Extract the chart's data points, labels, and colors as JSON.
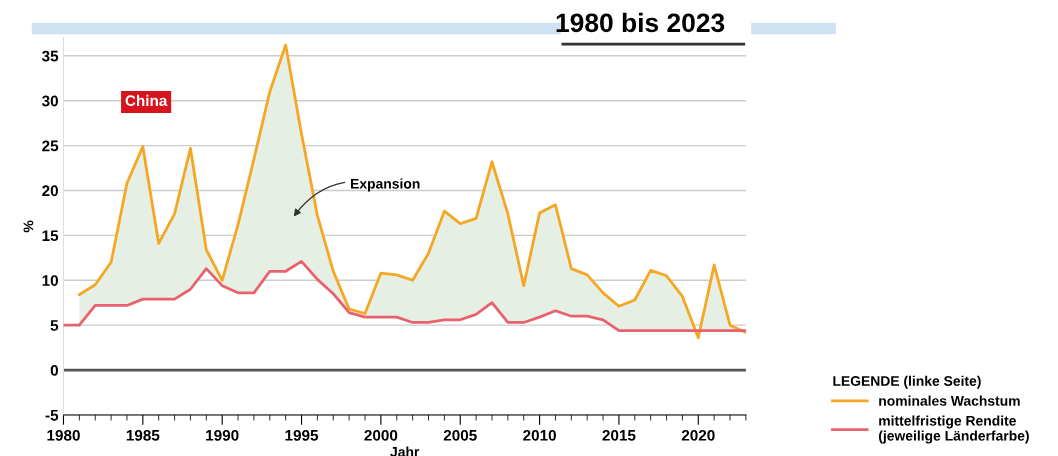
{
  "chart_data": {
    "type": "line",
    "title": "1980 bis 2023",
    "xlabel": "Jahr",
    "ylabel": "%",
    "legend_title": "LEGENDE (linke Seite)",
    "x": [
      1980,
      1981,
      1982,
      1983,
      1984,
      1985,
      1986,
      1987,
      1988,
      1989,
      1990,
      1991,
      1992,
      1993,
      1994,
      1995,
      1996,
      1997,
      1998,
      1999,
      2000,
      2001,
      2002,
      2003,
      2004,
      2005,
      2006,
      2007,
      2008,
      2009,
      2010,
      2011,
      2012,
      2013,
      2014,
      2015,
      2016,
      2017,
      2018,
      2019,
      2020,
      2021,
      2022,
      2023
    ],
    "series": [
      {
        "type": "area",
        "name": "nominales Wachstum",
        "color": "#f5a623",
        "x": [
          1981,
          1982,
          1983,
          1984,
          1985,
          1986,
          1987,
          1988,
          1989,
          1990,
          1991,
          1992,
          1993,
          1994,
          1995,
          1996,
          1997,
          1998,
          1999,
          2000,
          2001,
          2002,
          2003,
          2004,
          2005,
          2006,
          2007,
          2008,
          2009,
          2010,
          2011,
          2012,
          2013,
          2014,
          2015,
          2016,
          2017,
          2018,
          2019,
          2020,
          2021,
          2022,
          2023
        ],
        "values": [
          8.4,
          9.5,
          12,
          20.8,
          24.9,
          14.1,
          17.4,
          24.7,
          13.4,
          10,
          16.2,
          23.5,
          31,
          36.2,
          26.3,
          17.2,
          11,
          6.8,
          6.3,
          10.8,
          10.6,
          10,
          13,
          17.7,
          16.3,
          16.9,
          23.2,
          17.4,
          9.4,
          17.5,
          18.4,
          11.3,
          10.6,
          8.6,
          7.1,
          7.8,
          11.1,
          10.5,
          8.2,
          3.6,
          11.7,
          5.0,
          4.2
        ]
      },
      {
        "name": "mittelfristige Rendite\n(jeweilige Länderfarbe)",
        "color": "#e8626e",
        "values": [
          5,
          5,
          7.2,
          7.2,
          7.2,
          7.9,
          7.9,
          7.9,
          9,
          11.3,
          9.4,
          8.6,
          8.6,
          11,
          11,
          12.1,
          10.1,
          8.5,
          6.4,
          5.9,
          5.9,
          5.9,
          5.3,
          5.3,
          5.6,
          5.6,
          6.2,
          7.5,
          5.3,
          5.3,
          5.9,
          6.6,
          6.0,
          6.0,
          5.6,
          4.4,
          4.4,
          4.4,
          4.4,
          4.4,
          4.4,
          4.4,
          4.4,
          4.4
        ]
      }
    ],
    "xlim": [
      1980,
      2023
    ],
    "xticks": [
      1980,
      1985,
      1990,
      1995,
      2000,
      2005,
      2010,
      2015,
      2020
    ],
    "ylim": [
      -5,
      37
    ],
    "yticks": [
      -5,
      0,
      5,
      10,
      15,
      20,
      25,
      30,
      35
    ],
    "grid": "y",
    "legend": "bottom right",
    "marker": "none",
    "line_style": "solid",
    "ref_lines": [
      {
        "axis": "y",
        "value": 0,
        "color": "#555555"
      }
    ],
    "annotations": [
      "China",
      "Expansion"
    ]
  }
}
